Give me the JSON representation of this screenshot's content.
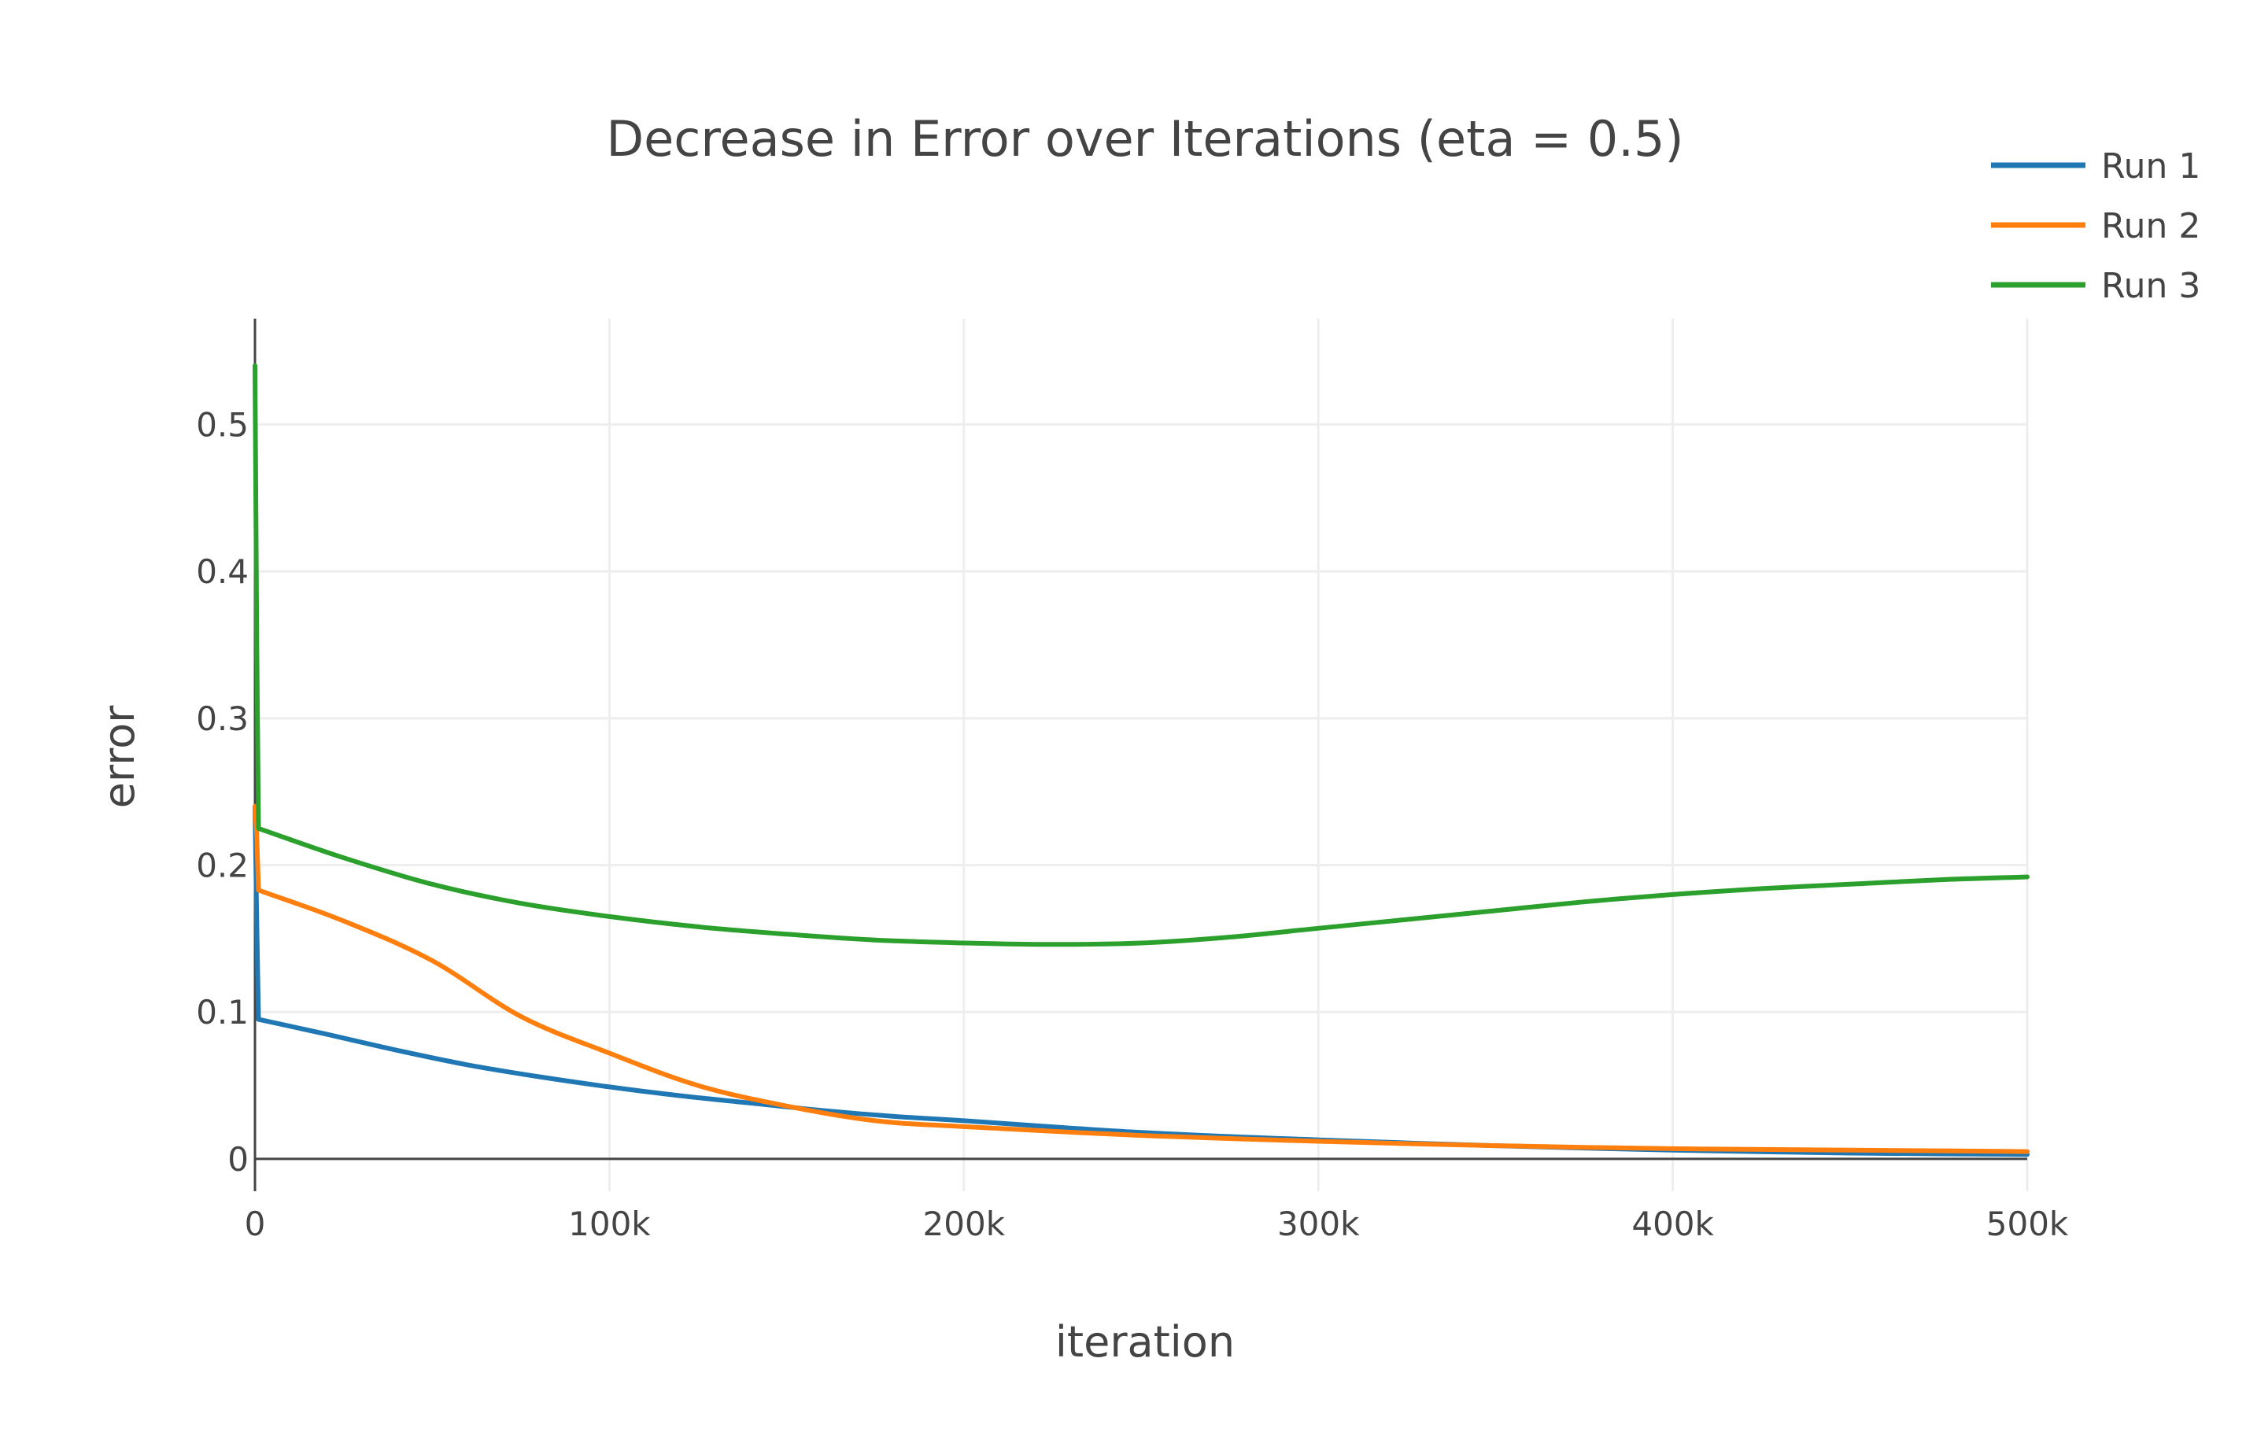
{
  "chart_data": {
    "type": "line",
    "title": "Decrease in Error over Iterations (eta = 0.5)",
    "xlabel": "iteration",
    "ylabel": "error",
    "xlim": [
      0,
      500000
    ],
    "ylim": [
      -0.022,
      0.572
    ],
    "x_ticks": [
      {
        "value": 0,
        "label": "0"
      },
      {
        "value": 100000,
        "label": "100k"
      },
      {
        "value": 200000,
        "label": "200k"
      },
      {
        "value": 300000,
        "label": "300k"
      },
      {
        "value": 400000,
        "label": "400k"
      },
      {
        "value": 500000,
        "label": "500k"
      }
    ],
    "y_ticks": [
      {
        "value": 0,
        "label": "0"
      },
      {
        "value": 0.1,
        "label": "0.1"
      },
      {
        "value": 0.2,
        "label": "0.2"
      },
      {
        "value": 0.3,
        "label": "0.3"
      },
      {
        "value": 0.4,
        "label": "0.4"
      },
      {
        "value": 0.5,
        "label": "0.5"
      }
    ],
    "grid": true,
    "legend_position": "top-right",
    "series": [
      {
        "name": "Run 1",
        "color": "#1f77b4",
        "x": [
          0,
          500,
          1000,
          20000,
          40000,
          60000,
          80000,
          100000,
          120000,
          140000,
          160000,
          180000,
          200000,
          250000,
          300000,
          350000,
          400000,
          450000,
          500000
        ],
        "y": [
          0.24,
          0.16,
          0.095,
          0.085,
          0.074,
          0.064,
          0.056,
          0.049,
          0.043,
          0.038,
          0.033,
          0.029,
          0.026,
          0.018,
          0.013,
          0.009,
          0.006,
          0.004,
          0.003
        ]
      },
      {
        "name": "Run 2",
        "color": "#ff7f0e",
        "x": [
          0,
          500,
          1000,
          25000,
          50000,
          75000,
          100000,
          125000,
          150000,
          175000,
          200000,
          250000,
          300000,
          350000,
          400000,
          450000,
          500000
        ],
        "y": [
          0.24,
          0.22,
          0.183,
          0.162,
          0.135,
          0.097,
          0.072,
          0.05,
          0.036,
          0.026,
          0.022,
          0.016,
          0.012,
          0.009,
          0.007,
          0.006,
          0.005
        ]
      },
      {
        "name": "Run 3",
        "color": "#2ca02c",
        "x": [
          0,
          500,
          1000,
          25000,
          50000,
          75000,
          100000,
          125000,
          150000,
          175000,
          200000,
          225000,
          250000,
          275000,
          300000,
          325000,
          350000,
          375000,
          400000,
          425000,
          450000,
          475000,
          500000
        ],
        "y": [
          0.54,
          0.35,
          0.225,
          0.205,
          0.187,
          0.174,
          0.165,
          0.158,
          0.153,
          0.149,
          0.147,
          0.146,
          0.147,
          0.151,
          0.157,
          0.163,
          0.169,
          0.175,
          0.18,
          0.184,
          0.187,
          0.19,
          0.192
        ]
      }
    ]
  }
}
